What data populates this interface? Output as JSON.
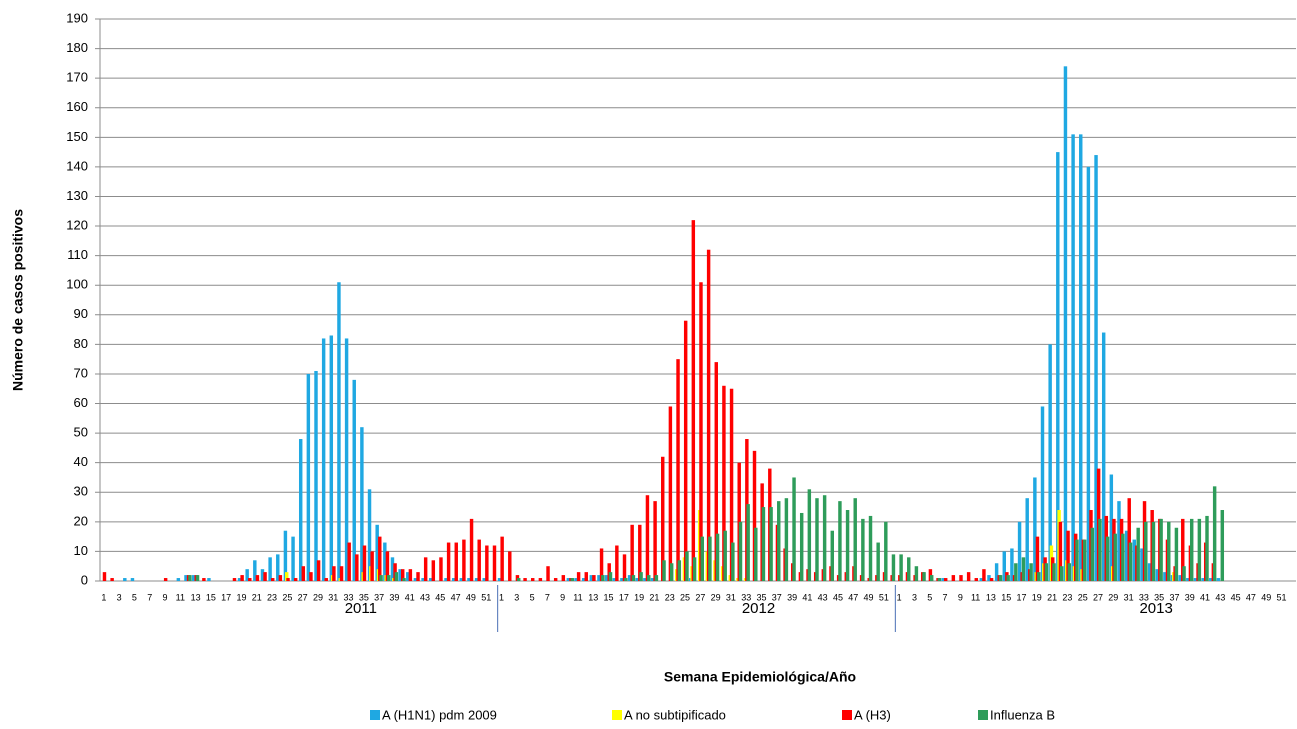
{
  "chart_data": {
    "type": "bar",
    "y_label": "Número de casos positivos",
    "x_label": "Semana Epidemiológica/Año",
    "groups": [
      "2011",
      "2012",
      "2013"
    ],
    "categories": [
      "1",
      null,
      "3",
      null,
      "5",
      null,
      "7",
      null,
      "9",
      null,
      "11",
      null,
      "13",
      null,
      "15",
      null,
      "17",
      null,
      "19",
      null,
      "21",
      null,
      "23",
      null,
      "25",
      null,
      "27",
      null,
      "29",
      null,
      "31",
      null,
      "33",
      null,
      "35",
      null,
      "37",
      null,
      "39",
      null,
      "41",
      null,
      "43",
      null,
      "45",
      null,
      "47",
      null,
      "49",
      null,
      "51",
      null,
      "1",
      null,
      "3",
      null,
      "5",
      null,
      "7",
      null,
      "9",
      null,
      "11",
      null,
      "13",
      null,
      "15",
      null,
      "17",
      null,
      "19",
      null,
      "21",
      null,
      "23",
      null,
      "25",
      null,
      "27",
      null,
      "29",
      null,
      "31",
      null,
      "33",
      null,
      "35",
      null,
      "37",
      null,
      "39",
      null,
      "41",
      null,
      "43",
      null,
      "45",
      null,
      "47",
      null,
      "49",
      null,
      "51",
      null,
      "1",
      null,
      "3",
      null,
      "5",
      null,
      "7",
      null,
      "9",
      null,
      "11",
      null,
      "13",
      null,
      "15",
      null,
      "17",
      null,
      "19",
      null,
      "21",
      null,
      "23",
      null,
      "25",
      null,
      "27",
      null,
      "29",
      null,
      "31",
      null,
      "33",
      null,
      "35",
      null,
      "37",
      null,
      "39",
      null,
      "41",
      null,
      "43",
      null,
      "45",
      null,
      "47",
      null,
      "49",
      null,
      "51",
      null
    ],
    "series": [
      {
        "name": "A (H1N1) pdm 2009",
        "color": "#1fa8e2",
        "values": [
          0,
          0,
          0,
          1,
          1,
          0,
          0,
          0,
          0,
          0,
          1,
          2,
          2,
          0,
          1,
          0,
          0,
          0,
          1,
          4,
          7,
          4,
          8,
          9,
          17,
          15,
          48,
          70,
          71,
          82,
          83,
          101,
          82,
          68,
          52,
          31,
          19,
          13,
          8,
          4,
          3,
          1,
          1,
          1,
          0,
          1,
          1,
          1,
          1,
          1,
          1,
          0,
          1,
          0,
          0,
          0,
          0,
          0,
          0,
          0,
          0,
          1,
          1,
          1,
          2,
          2,
          2,
          1,
          1,
          2,
          1,
          1,
          1,
          0,
          0,
          0,
          0,
          1,
          0,
          0,
          0,
          0,
          0,
          0,
          0,
          0,
          0,
          0,
          0,
          0,
          0,
          0,
          0,
          0,
          0,
          0,
          0,
          0,
          0,
          0,
          0,
          0,
          0,
          0,
          0,
          0,
          0,
          0,
          0,
          0,
          1,
          0,
          0,
          0,
          0,
          1,
          2,
          6,
          10,
          11,
          20,
          28,
          35,
          59,
          80,
          145,
          174,
          151,
          151,
          140,
          144,
          84,
          36,
          27,
          17,
          14,
          11,
          6,
          4,
          3,
          2,
          2,
          1,
          1,
          1,
          1,
          1,
          null,
          null,
          null,
          null,
          null,
          null,
          null,
          null,
          null
        ]
      },
      {
        "name": "A no subtipificado",
        "color": "#ffff00",
        "values": [
          0,
          0,
          0,
          0,
          0,
          0,
          0,
          0,
          0,
          0,
          0,
          0,
          0,
          0,
          0,
          0,
          0,
          0,
          0,
          0,
          0,
          0,
          0,
          0,
          3,
          0,
          0,
          0,
          0,
          0,
          2,
          1,
          0,
          0,
          3,
          5,
          4,
          2,
          1,
          0,
          0,
          0,
          0,
          0,
          0,
          0,
          0,
          0,
          0,
          0,
          0,
          0,
          0,
          0,
          0,
          0,
          0,
          0,
          0,
          0,
          0,
          0,
          0,
          0,
          0,
          0,
          0,
          0,
          0,
          0,
          0,
          0,
          0,
          0,
          0,
          4,
          8,
          5,
          24,
          10,
          7,
          5,
          2,
          1,
          1,
          0,
          0,
          0,
          0,
          0,
          0,
          0,
          0,
          0,
          0,
          0,
          0,
          0,
          0,
          0,
          0,
          0,
          0,
          0,
          0,
          0,
          0,
          0,
          0,
          0,
          0,
          0,
          0,
          0,
          0,
          0,
          0,
          0,
          0,
          0,
          0,
          0,
          3,
          6,
          12,
          24,
          7,
          5,
          4,
          0,
          0,
          0,
          5,
          0,
          0,
          0,
          0,
          0,
          0,
          0,
          3,
          0,
          0,
          0,
          0,
          0,
          0,
          null,
          null,
          null,
          null,
          null,
          null,
          null,
          null,
          null
        ]
      },
      {
        "name": "A (H3)",
        "color": "#ff0000",
        "values": [
          3,
          1,
          0,
          0,
          0,
          0,
          0,
          0,
          1,
          0,
          0,
          2,
          2,
          1,
          0,
          0,
          0,
          1,
          2,
          1,
          2,
          3,
          1,
          2,
          1,
          1,
          5,
          3,
          7,
          1,
          5,
          5,
          13,
          9,
          12,
          10,
          15,
          10,
          6,
          4,
          4,
          3,
          8,
          7,
          8,
          13,
          13,
          14,
          21,
          14,
          12,
          12,
          15,
          10,
          2,
          1,
          1,
          1,
          5,
          1,
          2,
          1,
          3,
          3,
          2,
          11,
          6,
          12,
          9,
          19,
          19,
          29,
          27,
          42,
          59,
          75,
          88,
          122,
          101,
          112,
          74,
          66,
          65,
          40,
          48,
          44,
          33,
          38,
          19,
          11,
          6,
          3,
          4,
          3,
          4,
          5,
          2,
          3,
          5,
          2,
          1,
          2,
          3,
          2,
          2,
          3,
          2,
          3,
          4,
          1,
          1,
          2,
          2,
          3,
          1,
          4,
          1,
          2,
          3,
          2,
          3,
          4,
          15,
          8,
          8,
          20,
          17,
          16,
          14,
          24,
          38,
          22,
          21,
          21,
          28,
          12,
          27,
          24,
          21,
          14,
          5,
          21,
          12,
          6,
          13,
          6,
          0,
          null,
          null,
          null,
          null,
          null,
          null,
          null,
          null,
          null
        ]
      },
      {
        "name": "Influenza  B",
        "color": "#2e9c5a",
        "values": [
          0,
          0,
          0,
          0,
          0,
          0,
          0,
          0,
          0,
          0,
          0,
          2,
          2,
          0,
          0,
          0,
          0,
          0,
          0,
          0,
          0,
          0,
          0,
          0,
          0,
          0,
          0,
          0,
          0,
          0,
          0,
          0,
          0,
          0,
          0,
          0,
          2,
          2,
          3,
          1,
          0,
          0,
          0,
          0,
          0,
          0,
          0,
          0,
          0,
          0,
          0,
          0,
          0,
          0,
          1,
          0,
          0,
          0,
          0,
          0,
          0,
          1,
          0,
          0,
          0,
          2,
          3,
          0,
          1,
          2,
          3,
          2,
          2,
          7,
          6,
          7,
          10,
          8,
          15,
          15,
          16,
          17,
          13,
          20,
          26,
          18,
          25,
          25,
          27,
          28,
          35,
          23,
          31,
          28,
          29,
          17,
          27,
          24,
          28,
          21,
          22,
          13,
          20,
          9,
          9,
          8,
          5,
          3,
          2,
          1,
          0,
          0,
          0,
          0,
          0,
          0,
          0,
          2,
          2,
          6,
          8,
          6,
          3,
          6,
          6,
          5,
          6,
          14,
          14,
          18,
          21,
          15,
          16,
          16,
          13,
          18,
          20,
          20,
          21,
          20,
          18,
          5,
          21,
          21,
          22,
          32,
          24,
          null,
          null,
          null,
          null,
          null,
          null,
          null,
          null,
          null
        ]
      }
    ],
    "ylim": [
      0,
      190
    ],
    "yticks": [
      0,
      10,
      20,
      30,
      40,
      50,
      60,
      70,
      80,
      90,
      100,
      110,
      120,
      130,
      140,
      150,
      160,
      170,
      180,
      190
    ],
    "grid": true
  }
}
